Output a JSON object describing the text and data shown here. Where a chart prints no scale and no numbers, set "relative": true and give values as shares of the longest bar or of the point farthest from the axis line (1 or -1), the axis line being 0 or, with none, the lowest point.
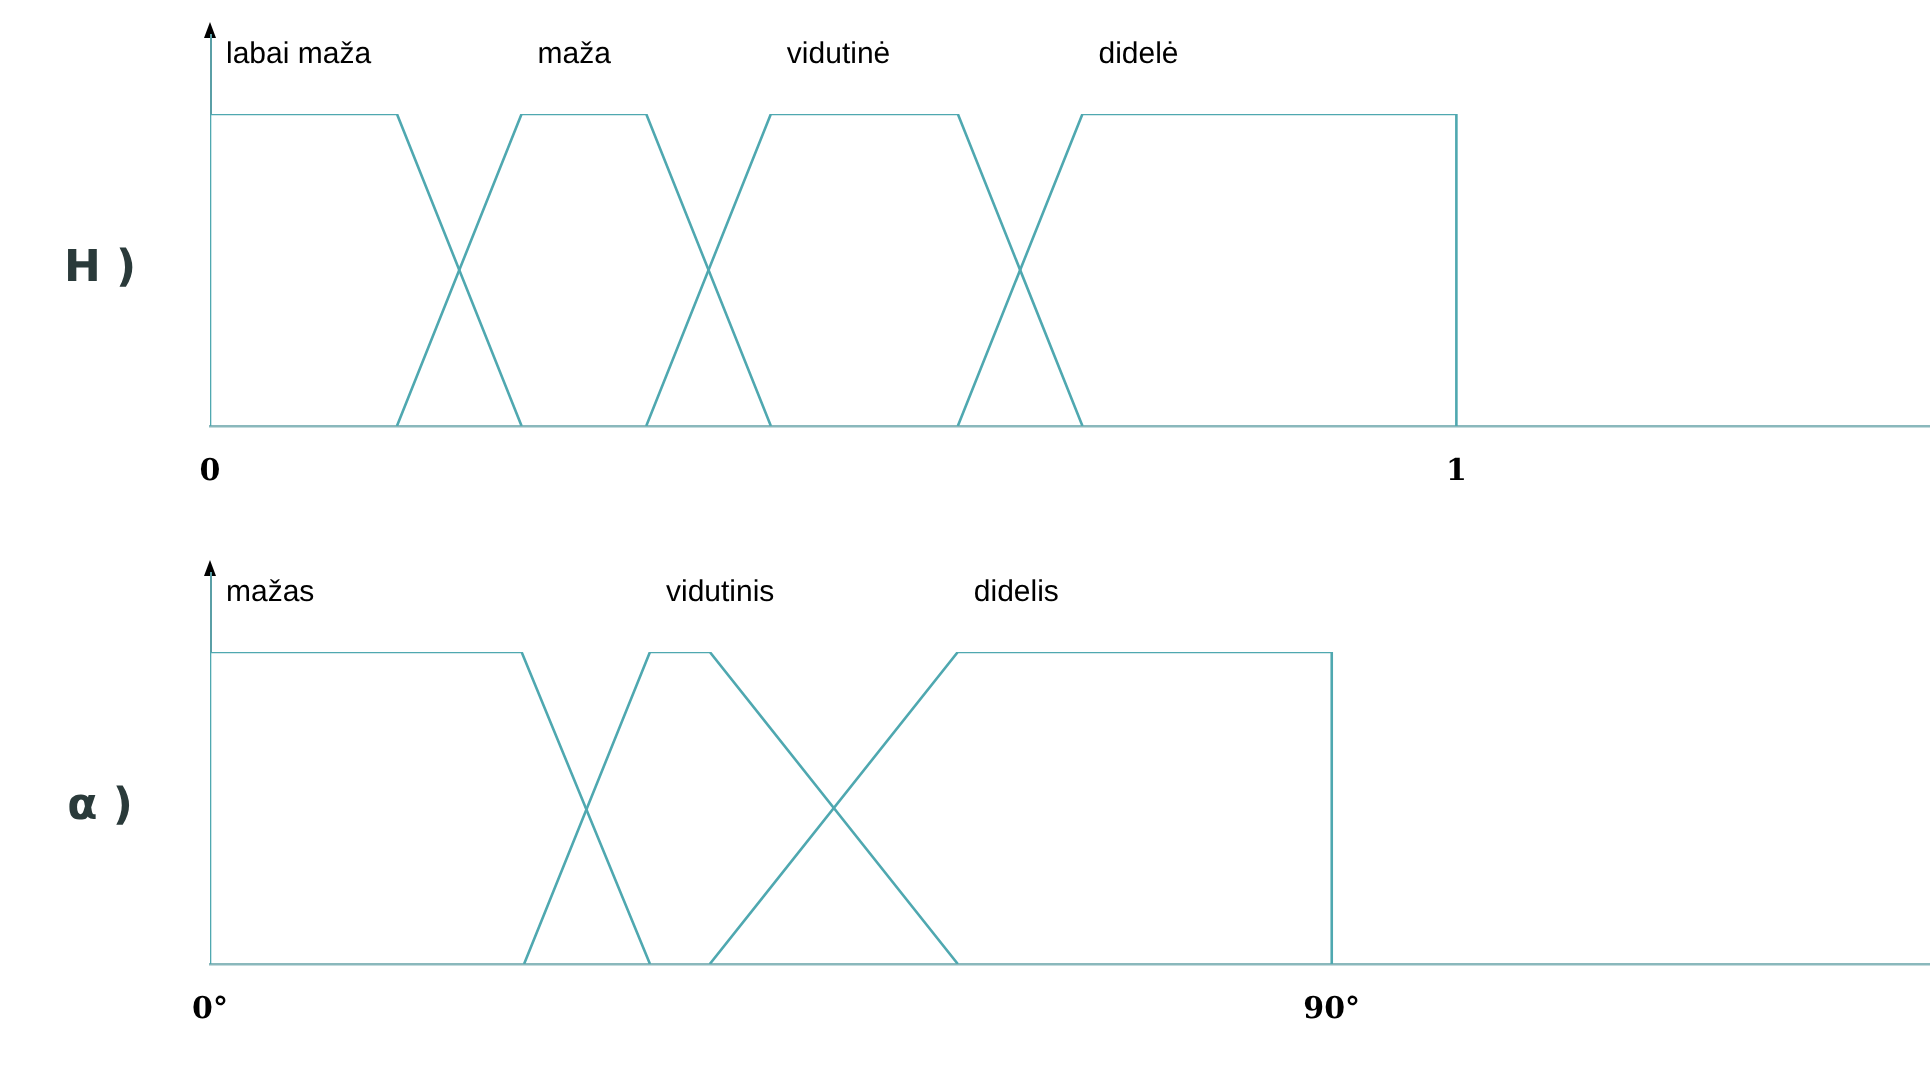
{
  "chart_data": [
    {
      "type": "line",
      "ylabel": "H )",
      "relative": true,
      "xlim": [
        0,
        1.38
      ],
      "xticks": [
        0,
        1
      ],
      "legend": false,
      "marker": "none",
      "line_style": "solid",
      "series": [
        {
          "name": "labai maža",
          "color": "#4fa8b0",
          "x": [
            0,
            0,
            0.15,
            0.25
          ],
          "values": [
            0,
            1,
            1,
            0
          ]
        },
        {
          "name": "maža",
          "color": "#4fa8b0",
          "x": [
            0.15,
            0.25,
            0.35,
            0.45
          ],
          "values": [
            0,
            1,
            1,
            0
          ]
        },
        {
          "name": "vidutinė",
          "color": "#4fa8b0",
          "x": [
            0.35,
            0.45,
            0.6,
            0.7
          ],
          "values": [
            0,
            1,
            1,
            0
          ]
        },
        {
          "name": "didelė",
          "color": "#4fa8b0",
          "x": [
            0.6,
            0.7,
            1,
            1
          ],
          "values": [
            0,
            1,
            1,
            0
          ]
        }
      ]
    },
    {
      "type": "line",
      "ylabel": "α )",
      "relative": true,
      "xlim": [
        0,
        138
      ],
      "xticks": [
        {
          "value": 0,
          "label": "0°"
        },
        {
          "value": 90,
          "label": "90°"
        }
      ],
      "legend": false,
      "marker": "none",
      "line_style": "solid",
      "series": [
        {
          "name": "mažas",
          "color": "#4fa8b0",
          "x": [
            0,
            0,
            25,
            35.3
          ],
          "values": [
            0,
            1,
            1,
            0
          ]
        },
        {
          "name": "vidutinis",
          "color": "#4fa8b0",
          "x": [
            25.2,
            35.3,
            40.1,
            60
          ],
          "values": [
            0,
            1,
            1,
            0
          ]
        },
        {
          "name": "didelis",
          "color": "#4fa8b0",
          "x": [
            40.1,
            60,
            90,
            90
          ],
          "values": [
            0,
            1,
            1,
            0
          ]
        }
      ]
    }
  ]
}
